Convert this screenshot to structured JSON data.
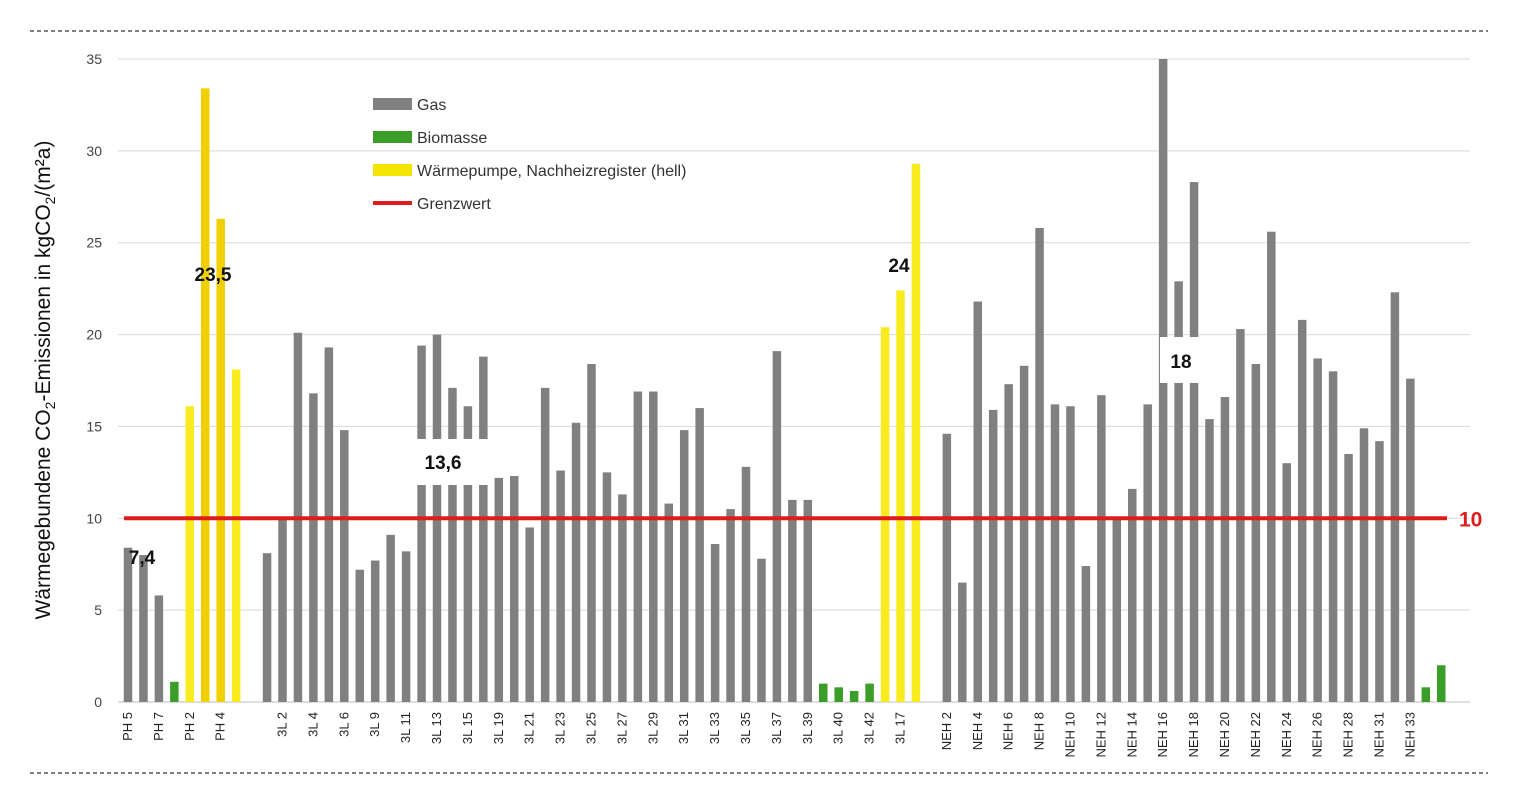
{
  "chart_data": {
    "type": "bar",
    "ylabel_parts": [
      "Wärmegebundene CO",
      "2",
      "-Emissionen in kgCO",
      "2",
      "/(m²a)"
    ],
    "yticks": [
      0,
      5,
      10,
      15,
      20,
      25,
      30,
      35
    ],
    "ylim": [
      0,
      35
    ],
    "grid": true,
    "legend_position": "top-left",
    "legend": [
      {
        "label": "Gas",
        "color": "#808080",
        "kind": "bar"
      },
      {
        "label": "Biomasse",
        "color": "#3a9e28",
        "kind": "bar"
      },
      {
        "label": "Wärmepumpe, Nachheizregister (hell)",
        "color": "#f5e400",
        "kind": "bar"
      },
      {
        "label": "Grenzwert",
        "color": "#e01b1b",
        "kind": "line"
      }
    ],
    "threshold": {
      "value": 10,
      "label": "10",
      "color": "#e01b1b"
    },
    "category_labels": [
      "PH 5",
      "PH 7",
      "PH 2",
      "PH 4",
      "3L 2",
      "3L 4",
      "3L 6",
      "3L 9",
      "3L 11",
      "3L 13",
      "3L 15",
      "3L 19",
      "3L 21",
      "3L 23",
      "3L 25",
      "3L 27",
      "3L 29",
      "3L 31",
      "3L 33",
      "3L 35",
      "3L 37",
      "3L 39",
      "3L 40",
      "3L 42",
      "3L 17",
      "NEH 2",
      "NEH 4",
      "NEH 6",
      "NEH 8",
      "NEH 10",
      "NEH 12",
      "NEH 14",
      "NEH 16",
      "NEH 18",
      "NEH 20",
      "NEH 22",
      "NEH 24",
      "NEH 26",
      "NEH 28",
      "NEH 31",
      "NEH 33"
    ],
    "bars": [
      {
        "value": 8.4,
        "type": "gas"
      },
      {
        "value": 8.0,
        "type": "gas"
      },
      {
        "value": 5.8,
        "type": "gas"
      },
      {
        "value": 1.1,
        "type": "bio"
      },
      {
        "value": 16.1,
        "type": "wp_light"
      },
      {
        "value": 33.4,
        "type": "wp"
      },
      {
        "value": 26.3,
        "type": "wp"
      },
      {
        "value": 18.1,
        "type": "wp_light"
      },
      null,
      {
        "value": 8.1,
        "type": "gas"
      },
      {
        "value": 10.0,
        "type": "gas"
      },
      {
        "value": 20.1,
        "type": "gas"
      },
      {
        "value": 16.8,
        "type": "gas"
      },
      {
        "value": 19.3,
        "type": "gas"
      },
      {
        "value": 14.8,
        "type": "gas"
      },
      {
        "value": 7.2,
        "type": "gas"
      },
      {
        "value": 7.7,
        "type": "gas"
      },
      {
        "value": 9.1,
        "type": "gas"
      },
      {
        "value": 8.2,
        "type": "gas"
      },
      {
        "value": 19.4,
        "type": "gas"
      },
      {
        "value": 20.0,
        "type": "gas"
      },
      {
        "value": 17.1,
        "type": "gas"
      },
      {
        "value": 16.1,
        "type": "gas"
      },
      {
        "value": 18.8,
        "type": "gas"
      },
      {
        "value": 12.2,
        "type": "gas"
      },
      {
        "value": 12.3,
        "type": "gas"
      },
      {
        "value": 9.5,
        "type": "gas"
      },
      {
        "value": 17.1,
        "type": "gas"
      },
      {
        "value": 12.6,
        "type": "gas"
      },
      {
        "value": 15.2,
        "type": "gas"
      },
      {
        "value": 18.4,
        "type": "gas"
      },
      {
        "value": 12.5,
        "type": "gas"
      },
      {
        "value": 11.3,
        "type": "gas"
      },
      {
        "value": 16.9,
        "type": "gas"
      },
      {
        "value": 16.9,
        "type": "gas"
      },
      {
        "value": 10.8,
        "type": "gas"
      },
      {
        "value": 14.8,
        "type": "gas"
      },
      {
        "value": 16.0,
        "type": "gas"
      },
      {
        "value": 8.6,
        "type": "gas"
      },
      {
        "value": 10.5,
        "type": "gas"
      },
      {
        "value": 12.8,
        "type": "gas"
      },
      {
        "value": 7.8,
        "type": "gas"
      },
      {
        "value": 19.1,
        "type": "gas"
      },
      {
        "value": 11.0,
        "type": "gas"
      },
      {
        "value": 11.0,
        "type": "gas"
      },
      {
        "value": 1.0,
        "type": "bio"
      },
      {
        "value": 0.8,
        "type": "bio"
      },
      {
        "value": 0.6,
        "type": "bio"
      },
      {
        "value": 1.0,
        "type": "bio"
      },
      {
        "value": 20.4,
        "type": "wp_light"
      },
      {
        "value": 22.4,
        "type": "wp_light"
      },
      {
        "value": 29.3,
        "type": "wp_light"
      },
      null,
      {
        "value": 14.6,
        "type": "gas"
      },
      {
        "value": 6.5,
        "type": "gas"
      },
      {
        "value": 21.8,
        "type": "gas"
      },
      {
        "value": 15.9,
        "type": "gas"
      },
      {
        "value": 17.3,
        "type": "gas"
      },
      {
        "value": 18.3,
        "type": "gas"
      },
      {
        "value": 25.8,
        "type": "gas"
      },
      {
        "value": 16.2,
        "type": "gas"
      },
      {
        "value": 16.1,
        "type": "gas"
      },
      {
        "value": 7.4,
        "type": "gas"
      },
      {
        "value": 16.7,
        "type": "gas"
      },
      {
        "value": 10.0,
        "type": "gas"
      },
      {
        "value": 11.6,
        "type": "gas"
      },
      {
        "value": 16.2,
        "type": "gas"
      },
      {
        "value": 35.0,
        "type": "gas"
      },
      {
        "value": 22.9,
        "type": "gas"
      },
      {
        "value": 28.3,
        "type": "gas"
      },
      {
        "value": 15.4,
        "type": "gas"
      },
      {
        "value": 16.6,
        "type": "gas"
      },
      {
        "value": 20.3,
        "type": "gas"
      },
      {
        "value": 18.4,
        "type": "gas"
      },
      {
        "value": 25.6,
        "type": "gas"
      },
      {
        "value": 13.0,
        "type": "gas"
      },
      {
        "value": 20.8,
        "type": "gas"
      },
      {
        "value": 18.7,
        "type": "gas"
      },
      {
        "value": 18.0,
        "type": "gas"
      },
      {
        "value": 13.5,
        "type": "gas"
      },
      {
        "value": 14.9,
        "type": "gas"
      },
      {
        "value": 14.2,
        "type": "gas"
      },
      {
        "value": 22.3,
        "type": "gas"
      },
      {
        "value": 17.6,
        "type": "gas"
      },
      {
        "value": 0.8,
        "type": "bio"
      },
      {
        "value": 2.0,
        "type": "bio"
      }
    ],
    "annotations": [
      {
        "text": "7,4",
        "value": 7.4
      },
      {
        "text": "23,5",
        "value": 23.5
      },
      {
        "text": "13,6",
        "value": 13.6
      },
      {
        "text": "24",
        "value": 24
      },
      {
        "text": "18",
        "value": 18
      }
    ],
    "colors": {
      "gas": "#808080",
      "bio": "#3a9e28",
      "wp": "#f0d000",
      "wp_light": "#f8ec20",
      "grid": "#d9d9d9",
      "axis": "#bfbfbf"
    }
  }
}
